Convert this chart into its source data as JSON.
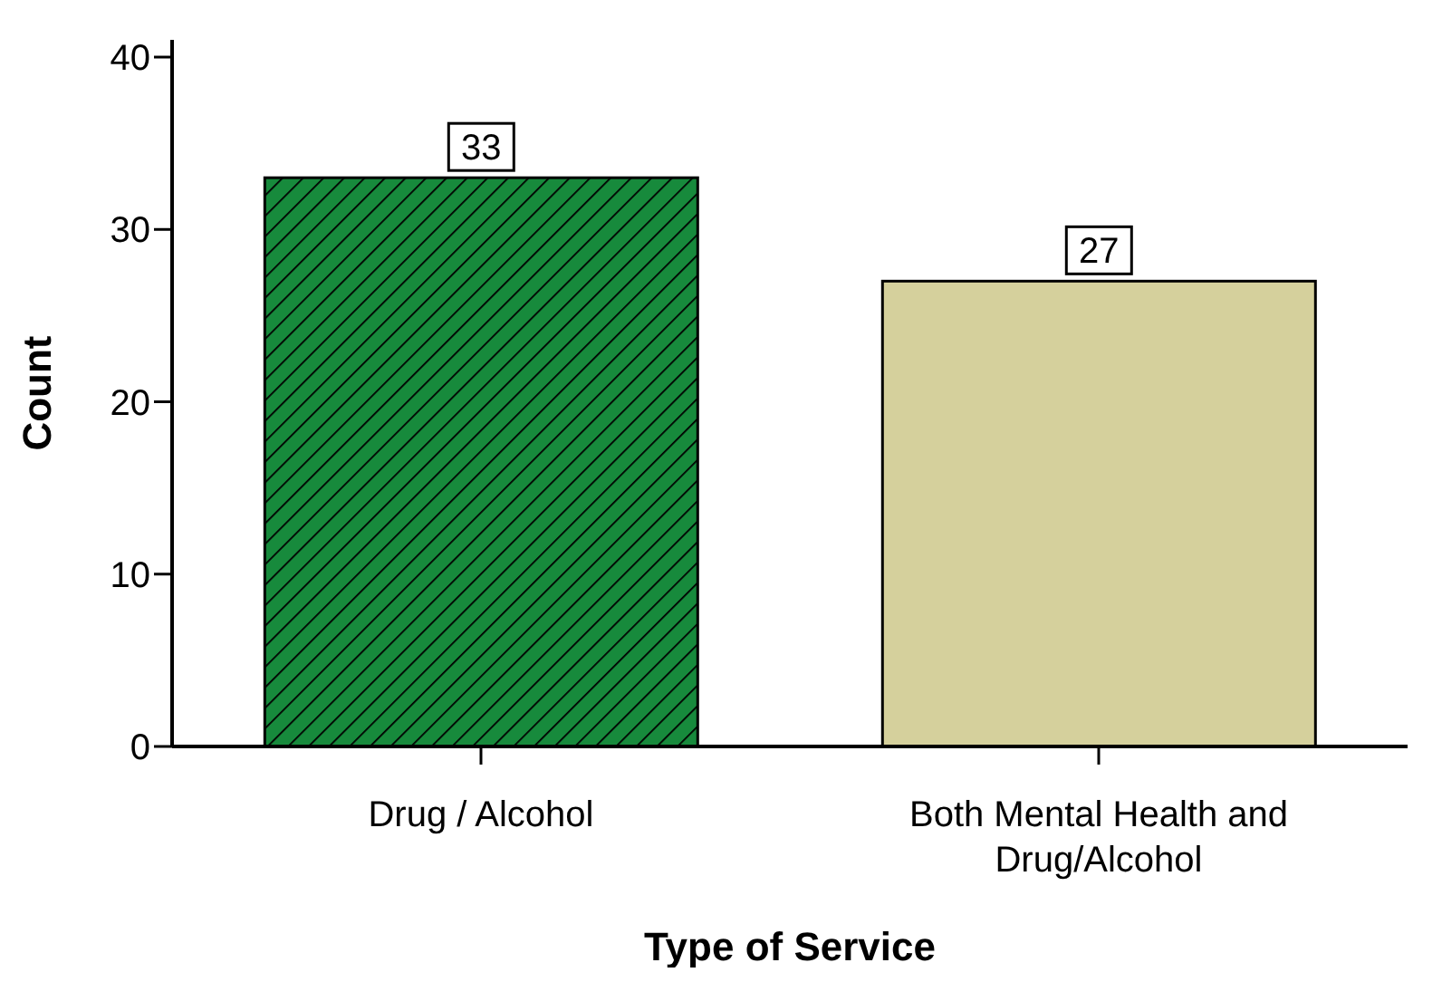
{
  "chart_data": {
    "type": "bar",
    "xlabel": "Type of Service",
    "ylabel": "Count",
    "categories": [
      "Drug / Alcohol",
      "Both Mental Health and Drug/Alcohol"
    ],
    "values": [
      33,
      27
    ],
    "colors": [
      "#178a3c",
      "#d5d09c"
    ],
    "ylim": [
      0,
      41
    ],
    "yticks": [
      0,
      10,
      20,
      30,
      40
    ],
    "grid": false,
    "data_labels": true
  }
}
